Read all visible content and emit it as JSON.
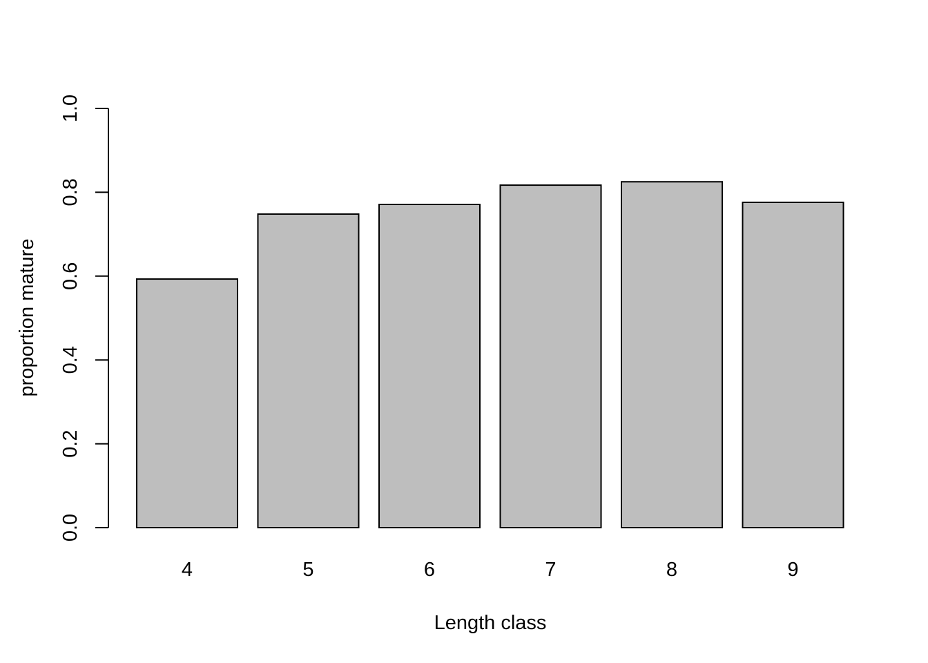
{
  "chart_data": {
    "type": "bar",
    "categories": [
      "4",
      "5",
      "6",
      "7",
      "8",
      "9"
    ],
    "values": [
      0.593,
      0.748,
      0.771,
      0.817,
      0.825,
      0.776
    ],
    "title": "",
    "xlabel": "Length class",
    "ylabel": "proportion mature",
    "ylim": [
      0,
      1
    ],
    "yticks": [
      0.0,
      0.2,
      0.4,
      0.6,
      0.8,
      1.0
    ],
    "ytick_labels": [
      "0.0",
      "0.2",
      "0.4",
      "0.6",
      "0.8",
      "1.0"
    ],
    "grid": false,
    "legend": "none",
    "bar_fill": "#bebebe",
    "bar_stroke": "#000000"
  }
}
